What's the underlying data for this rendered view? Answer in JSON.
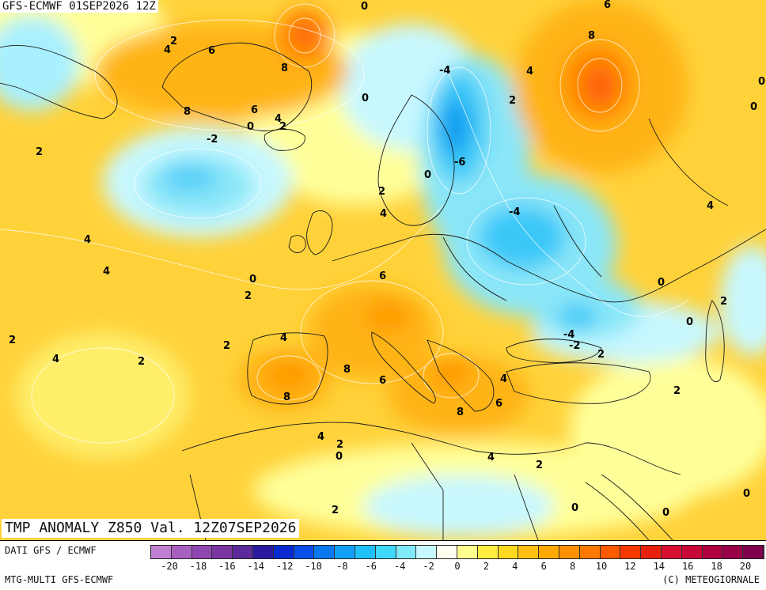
{
  "header": {
    "run": "GFS-ECMWF 01SEP2026 12Z",
    "field": "TMP ANOMALY Z850 Val. 12Z07SEP2026"
  },
  "footer": {
    "data_source": "DATI GFS / ECMWF",
    "model": "MTG-MULTI GFS-ECMWF",
    "copyright": "(C) METEOGIORNALE"
  },
  "legend": {
    "ticks": [
      "-20",
      "-18",
      "-16",
      "-14",
      "-12",
      "-10",
      "-8",
      "-6",
      "-4",
      "-2",
      "0",
      "2",
      "4",
      "6",
      "8",
      "10",
      "12",
      "14",
      "16",
      "18",
      "20"
    ],
    "colors": [
      "#c07fd0",
      "#a860c0",
      "#9048b0",
      "#7a36a0",
      "#5a2a9a",
      "#2a1aa0",
      "#0a2ad0",
      "#0a50e8",
      "#0a78f0",
      "#12a0f8",
      "#20c0f8",
      "#40d8f8",
      "#80eaf8",
      "#c8f8ff",
      "#fffff0",
      "#ffff90",
      "#ffee40",
      "#ffd820",
      "#ffc010",
      "#ffa800",
      "#ff9000",
      "#ff7800",
      "#ff5a00",
      "#f83a00",
      "#e82010",
      "#d81030",
      "#c80838",
      "#b00040",
      "#980048",
      "#800050"
    ]
  },
  "map": {
    "background_colors": {
      "warm_base": "#ffd23a",
      "warm_mid": "#ffb412",
      "warm_hot": "#ff8a00",
      "warm_max": "#ff5a10",
      "neutral": "#ffff9a",
      "cool_light": "#c8f8ff",
      "cool": "#8ae6f8",
      "cold": "#3ac8f8",
      "colder": "#0a9cf0"
    },
    "contour_labels": [
      "2",
      "4",
      "6",
      "8",
      "0",
      "-2",
      "-4",
      "-6"
    ]
  }
}
